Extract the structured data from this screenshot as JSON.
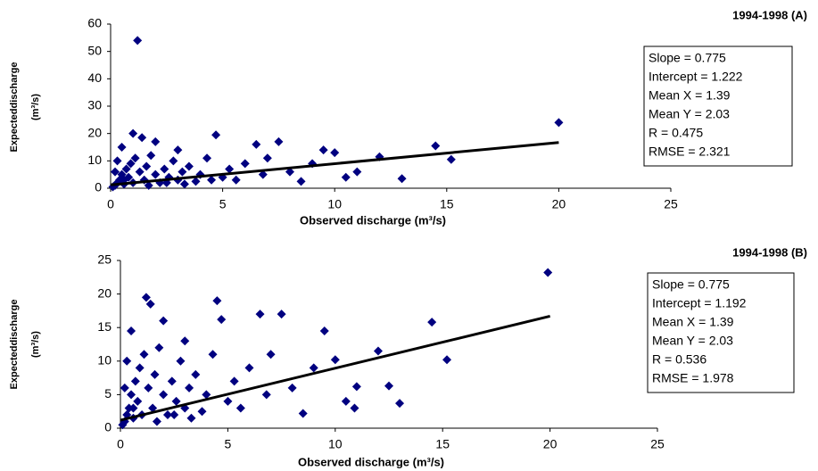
{
  "chart_data": [
    {
      "type": "scatter",
      "title": "1994-1998 (A)",
      "xlabel": "Observed discharge (m³/s)",
      "ylabel": "Expecteddischarge",
      "ylabel_unit": "(m³/s)",
      "xlim": [
        0,
        25
      ],
      "xticks": [
        0,
        5,
        10,
        15,
        20,
        25
      ],
      "ylim": [
        0,
        60
      ],
      "yticks": [
        0,
        10,
        20,
        30,
        40,
        50,
        60
      ],
      "points": {
        "color": "#000080",
        "x": [
          0.1,
          0.2,
          0.3,
          0.4,
          0.5,
          0.6,
          0.7,
          0.8,
          0.9,
          1,
          1.1,
          1.2,
          1.3,
          1.5,
          1.6,
          1.8,
          2,
          2.2,
          2.4,
          2.6,
          2.8,
          3,
          3.2,
          3.5,
          3.8,
          4,
          4.3,
          4.7,
          5,
          5.3,
          5.6,
          6,
          6.5,
          6.8,
          7,
          7.5,
          8,
          8.5,
          9,
          9.5,
          10,
          10.5,
          11,
          12,
          13,
          14.5,
          15.2,
          20,
          1,
          0.5,
          2,
          3,
          1.4,
          0.3,
          0.2,
          0.6,
          1.7,
          2.5,
          3.3,
          4.5
        ],
        "values": [
          0.5,
          1,
          2,
          3,
          5,
          1.5,
          7,
          4,
          9,
          2,
          11,
          54,
          6,
          3,
          8,
          12,
          5,
          2,
          7,
          4,
          10,
          3,
          6,
          8,
          2.5,
          5,
          11,
          19.5,
          4,
          7,
          3,
          9,
          16,
          5,
          11,
          17,
          6,
          2.5,
          9,
          14,
          13,
          4,
          6,
          11.5,
          3.5,
          15.5,
          10.5,
          24,
          20,
          15,
          17,
          14,
          18.5,
          10,
          6,
          3,
          1,
          2,
          1.5,
          3
        ]
      },
      "fit": {
        "color": "#000000",
        "x": [
          0,
          20
        ],
        "values": [
          1.222,
          16.722
        ]
      },
      "annotations": [
        "Slope = 0.775",
        "Intercept = 1.222",
        "Mean X = 1.39",
        "Mean Y = 2.03",
        "R = 0.475",
        "RMSE = 2.321"
      ]
    },
    {
      "type": "scatter",
      "title": "1994-1998 (B)",
      "xlabel": "Observed discharge (m³/s)",
      "ylabel": "Expecteddischarge",
      "ylabel_unit": "(m³/s)",
      "xlim": [
        0,
        25
      ],
      "xticks": [
        0,
        5,
        10,
        15,
        20,
        25
      ],
      "ylim": [
        0,
        25
      ],
      "yticks": [
        0,
        5,
        10,
        15,
        20,
        25
      ],
      "points": {
        "color": "#000080",
        "x": [
          0.1,
          0.2,
          0.3,
          0.4,
          0.5,
          0.6,
          0.7,
          0.8,
          0.9,
          1,
          1.1,
          1.3,
          1.5,
          1.6,
          1.8,
          2,
          2.2,
          2.4,
          2.6,
          2.8,
          3,
          3.2,
          3.5,
          3.8,
          4,
          4.3,
          4.5,
          5,
          5.3,
          5.6,
          6,
          6.5,
          6.8,
          7,
          7.5,
          8,
          8.5,
          9,
          9.5,
          10,
          10.5,
          10.9,
          11,
          12,
          12.5,
          13,
          14.5,
          15.2,
          19.9,
          1.2,
          0.5,
          2,
          3,
          1.4,
          0.3,
          0.2,
          0.6,
          1.7,
          2.5,
          3.3,
          4.7
        ],
        "values": [
          0.5,
          1,
          2,
          3,
          5,
          1.5,
          7,
          4,
          9,
          2,
          11,
          6,
          3,
          8,
          12,
          5,
          2,
          7,
          4,
          10,
          3,
          6,
          8,
          2.5,
          5,
          11,
          19,
          4,
          7,
          3,
          9,
          17,
          5,
          11,
          17,
          6,
          2.2,
          9,
          14.5,
          10.2,
          4,
          3,
          6.2,
          11.5,
          6.3,
          3.7,
          15.8,
          10.2,
          23.2,
          19.5,
          14.5,
          16,
          13,
          18.5,
          10,
          6,
          3,
          1,
          2,
          1.5,
          16.2
        ]
      },
      "fit": {
        "color": "#000000",
        "x": [
          0,
          20
        ],
        "values": [
          1.192,
          16.692
        ]
      },
      "annotations": [
        "Slope = 0.775",
        "Intercept = 1.192",
        "Mean X = 1.39",
        "Mean Y = 2.03",
        "R = 0.536",
        "RMSE = 1.978"
      ]
    }
  ]
}
